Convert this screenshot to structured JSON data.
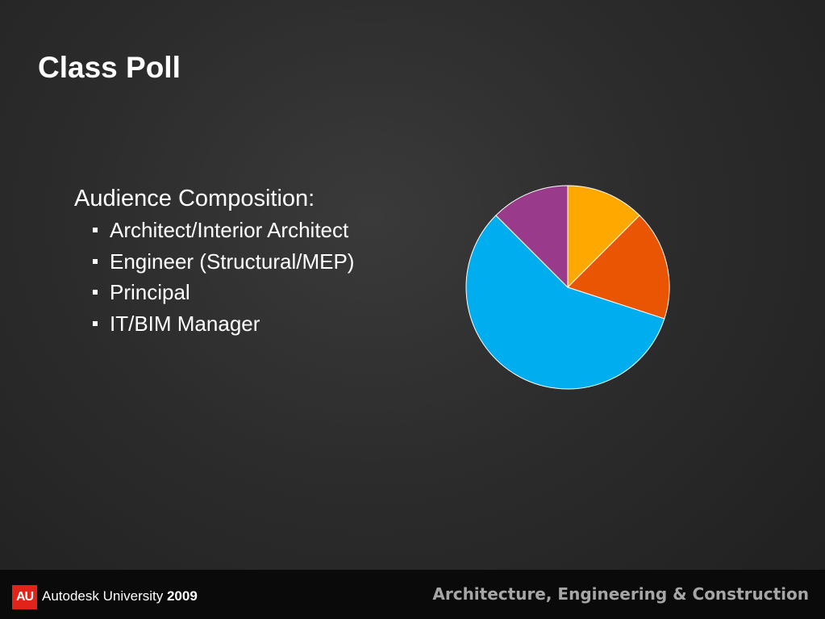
{
  "slide": {
    "title": "Class Poll",
    "heading": "Audience Composition:",
    "bullets": [
      "Architect/Interior Architect",
      "Engineer (Structural/MEP)",
      "Principal",
      "IT/BIM Manager"
    ]
  },
  "footer": {
    "logo_text": "AU",
    "brand": "Autodesk University",
    "year": "2009",
    "track": "Architecture, Engineering & Construction",
    "logo_color": "#e2231a"
  },
  "chart_data": {
    "type": "pie",
    "start_angle_deg": 0,
    "direction": "clockwise",
    "slices": [
      {
        "value": 12.5,
        "color": "#ffa800"
      },
      {
        "value": 17.5,
        "color": "#ea5504"
      },
      {
        "value": 57.5,
        "color": "#00aeef"
      },
      {
        "value": 12.5,
        "color": "#993a8b"
      }
    ]
  }
}
